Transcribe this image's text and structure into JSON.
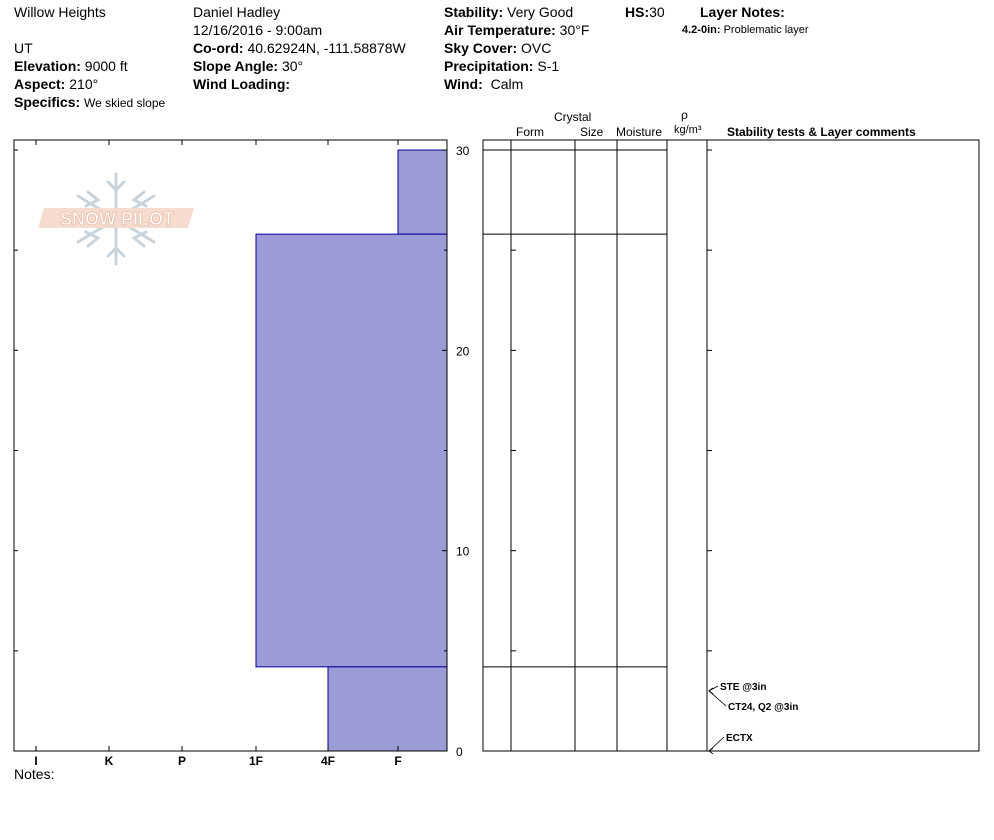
{
  "header": {
    "location": "Willow Heights",
    "state": "UT",
    "elevation_label": "Elevation:",
    "elevation": "9000 ft",
    "aspect_label": "Aspect:",
    "aspect": "210°",
    "specifics_label": "Specifics:",
    "specifics": "We skied slope",
    "observer": "Daniel Hadley",
    "datetime": "12/16/2016 - 9:00am",
    "coord_label": "Co-ord:",
    "coord": "40.62924N, -111.58878W",
    "slope_label": "Slope Angle:",
    "slope": "30°",
    "wind_loading_label": "Wind Loading:",
    "wind_loading": "",
    "stability_label": "Stability:",
    "stability": "Very Good",
    "air_temp_label": "Air Temperature:",
    "air_temp": "30°F",
    "sky_label": "Sky Cover:",
    "sky": "OVC",
    "precip_label": "Precipitation:",
    "precip": "S-1",
    "wind_label": "Wind:",
    "wind": "Calm",
    "hs_label": "HS:",
    "hs": "30",
    "layer_notes_label": "Layer Notes:",
    "layer_notes_range": "4.2-0in:",
    "layer_notes_text": "Problematic layer"
  },
  "logo_text": "SNOW PILOT",
  "columns": {
    "crystal": "Crystal",
    "form": "Form",
    "size": "Size",
    "moisture": "Moisture",
    "rho": "ρ",
    "density_unit": "kg/m³",
    "comments": "Stability tests & Layer comments"
  },
  "notes_label": "Notes:",
  "colors": {
    "layer_fill": "#9b9bd7",
    "layer_stroke": "#000099"
  },
  "chart_data": {
    "type": "bar",
    "title": "",
    "xlabel": "",
    "ylabel": "",
    "x_categories": [
      "I",
      "K",
      "P",
      "1F",
      "4F",
      "F"
    ],
    "ylim": [
      0,
      30.5
    ],
    "y_ticks": [
      0,
      10,
      20,
      30
    ],
    "layers": [
      {
        "top": 30,
        "bottom": 25.8,
        "hardness": "F"
      },
      {
        "top": 25.8,
        "bottom": 4.2,
        "hardness": "1F"
      },
      {
        "top": 4.2,
        "bottom": 0,
        "hardness": "4F"
      }
    ],
    "stability_tests": [
      {
        "text": "STE @3in",
        "depth": 3
      },
      {
        "text": "CT24, Q2 @3in",
        "depth": 3
      },
      {
        "text": "ECTX",
        "depth": 0
      }
    ]
  }
}
